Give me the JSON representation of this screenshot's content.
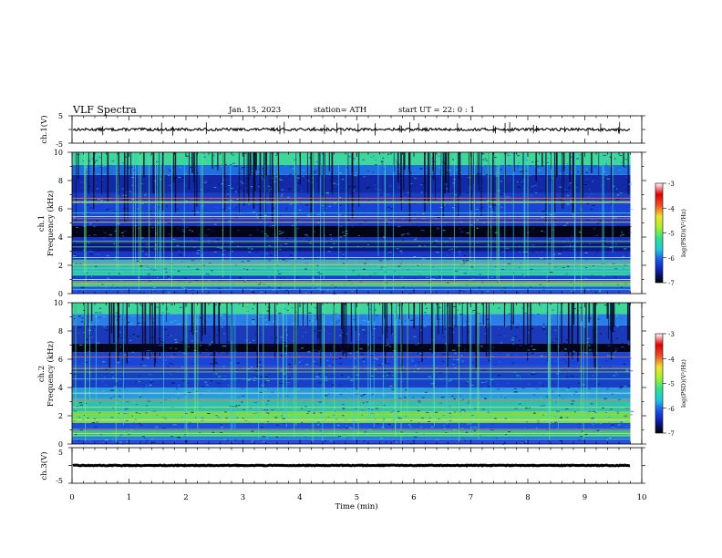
{
  "header": {
    "title": "VLF  Spectra",
    "date": "Jan.  15,  2023",
    "station": "station= ATH",
    "start": "start  UT  =    22: 0   : 1"
  },
  "chart_data": [
    {
      "type": "line",
      "name": "ch1-waveform",
      "ylabel": "ch.1(V)",
      "ylim": [
        -5,
        5
      ],
      "yticks": [
        "5",
        "-5"
      ],
      "x_range": [
        0,
        10
      ],
      "y_baseline": 0,
      "noise_amplitude": 0.5,
      "data_end_min": 9.8
    },
    {
      "type": "heatmap",
      "name": "ch1-spectrogram",
      "ylabel": "ch.1",
      "ylabel2": "Frequency  (kHz)",
      "ylim": [
        0,
        10
      ],
      "yticks": [
        "0",
        "2",
        "4",
        "6",
        "8",
        "10"
      ],
      "x_range": [
        0,
        10
      ],
      "data_end_min": 9.8,
      "bands": [
        {
          "f0": 0.0,
          "f1": 0.5,
          "color": "#2a4fe0"
        },
        {
          "f0": 0.5,
          "f1": 0.9,
          "color": "#2ab7b0"
        },
        {
          "f0": 0.9,
          "f1": 1.3,
          "color": "#1a3fd0"
        },
        {
          "f0": 1.3,
          "f1": 1.6,
          "color": "#30c8a0"
        },
        {
          "f0": 1.6,
          "f1": 2.4,
          "color": "#28b8c8"
        },
        {
          "f0": 2.4,
          "f1": 3.0,
          "color": "#1a36c8"
        },
        {
          "f0": 3.0,
          "f1": 3.6,
          "color": "#0a1878"
        },
        {
          "f0": 3.6,
          "f1": 4.0,
          "color": "#1532b8"
        },
        {
          "f0": 4.0,
          "f1": 4.8,
          "color": "#030418"
        },
        {
          "f0": 4.8,
          "f1": 5.3,
          "color": "#1737c8"
        },
        {
          "f0": 5.3,
          "f1": 6.4,
          "color": "#1a44d8"
        },
        {
          "f0": 6.4,
          "f1": 7.1,
          "color": "#1a3dc8"
        },
        {
          "f0": 7.1,
          "f1": 8.4,
          "color": "#132aa8"
        },
        {
          "f0": 8.4,
          "f1": 9.1,
          "color": "#1f6fe0"
        },
        {
          "f0": 9.1,
          "f1": 10.0,
          "color": "#3fd69a"
        }
      ],
      "lines_khz": [
        0.3,
        0.55,
        0.7,
        0.85,
        1.0,
        1.3,
        1.8,
        2.05,
        2.2,
        2.55,
        3.3,
        3.7,
        5.05,
        5.3,
        5.45,
        5.7,
        6.45,
        6.5,
        6.75
      ]
    },
    {
      "type": "heatmap",
      "name": "ch2-spectrogram",
      "ylabel": "ch.2",
      "ylabel2": "Frequency  (kHz)",
      "ylim": [
        0,
        10
      ],
      "yticks": [
        "0",
        "2",
        "4",
        "6",
        "8",
        "10"
      ],
      "x_range": [
        0,
        10
      ],
      "data_end_min": 9.8,
      "bands": [
        {
          "f0": 0.0,
          "f1": 0.5,
          "color": "#2a4fe0"
        },
        {
          "f0": 0.5,
          "f1": 1.0,
          "color": "#28c0a8"
        },
        {
          "f0": 1.0,
          "f1": 1.5,
          "color": "#1d50d8"
        },
        {
          "f0": 1.5,
          "f1": 2.3,
          "color": "#7cd848"
        },
        {
          "f0": 2.3,
          "f1": 3.2,
          "color": "#2fc0b0"
        },
        {
          "f0": 3.2,
          "f1": 4.0,
          "color": "#2a9ad8"
        },
        {
          "f0": 4.0,
          "f1": 5.5,
          "color": "#1a3ec8"
        },
        {
          "f0": 5.5,
          "f1": 6.5,
          "color": "#1a44d8"
        },
        {
          "f0": 6.5,
          "f1": 7.1,
          "color": "#040618"
        },
        {
          "f0": 7.1,
          "f1": 8.4,
          "color": "#1a3aba"
        },
        {
          "f0": 8.4,
          "f1": 9.2,
          "color": "#2a7ee8"
        },
        {
          "f0": 9.2,
          "f1": 10.0,
          "color": "#3fd69a"
        }
      ],
      "lines_khz": [
        0.35,
        0.6,
        0.75,
        1.05,
        1.7,
        1.95,
        2.1,
        2.6,
        3.1,
        3.6,
        4.6,
        5.1,
        5.35,
        6.15
      ]
    },
    {
      "type": "line",
      "name": "ch3-waveform",
      "ylabel": "ch.3(V)",
      "ylim": [
        -5,
        5
      ],
      "yticks": [
        "5",
        "-5"
      ],
      "x_range": [
        0,
        10
      ],
      "y_baseline": 0,
      "noise_amplitude": 0.1,
      "data_end_min": 9.8
    }
  ],
  "xaxis": {
    "label": "Time  (min)",
    "ticks": [
      "0",
      "1",
      "2",
      "3",
      "4",
      "5",
      "6",
      "7",
      "8",
      "9",
      "10"
    ]
  },
  "colorbar": {
    "label": "log(PSD)(V²/Hz)",
    "range": [
      -7,
      -3
    ],
    "ticks": [
      "-3",
      "-4",
      "-5",
      "-6",
      "-7"
    ],
    "colors": [
      "#000000",
      "#0a1aa0",
      "#1a50e8",
      "#20c8e0",
      "#30e090",
      "#a8f030",
      "#f0e030",
      "#f05028",
      "#e00000",
      "#ffffff"
    ]
  },
  "colors": {
    "axis": "#000000",
    "waveform": "#000000"
  }
}
